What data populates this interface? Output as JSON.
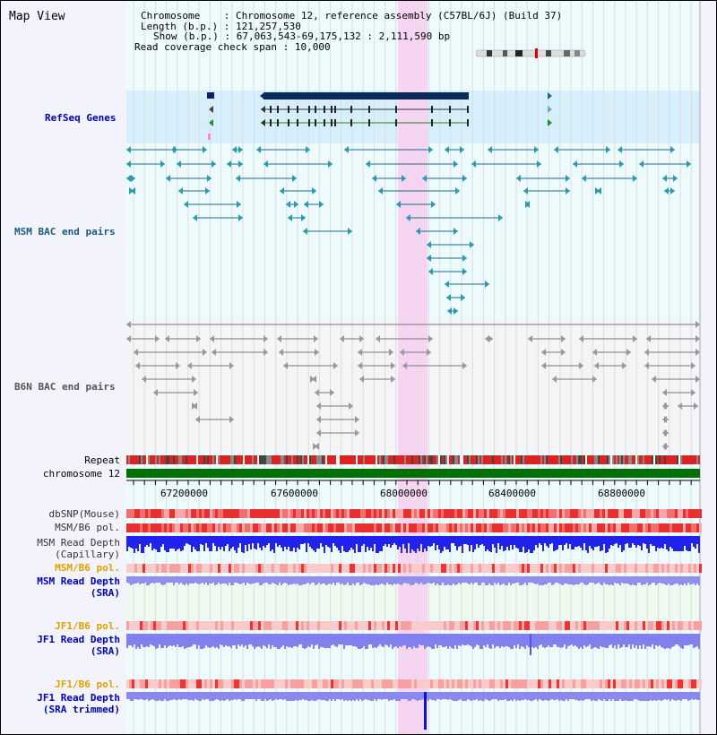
{
  "header": {
    "title": "Map View",
    "chromosome_label": "Chromosome",
    "chromosome_value": "Chromosome 12, reference assembly (C57BL/6J) (Build 37)",
    "length_label": "Length (b.p.)",
    "length_value": "121,257,530",
    "show_label": "Show (b.p.)",
    "show_value": "67,063,543-69,175,132 : 2,111,590 bp",
    "span_label": "Read coverage check span",
    "span_value": "10,000"
  },
  "tracks": {
    "refseq": "RefSeq Genes",
    "msm_bac": "MSM BAC end pairs",
    "b6n_bac": "B6N BAC end pairs",
    "repeat": "Repeat",
    "chromosome": "chromosome 12",
    "dbsnp": "dbSNP(Mouse)",
    "msm_b6_pol_1": "MSM/B6 pol.",
    "msm_read_cap_1": "MSM Read Depth",
    "msm_read_cap_2": "(Capillary)",
    "msm_b6_pol_2": "MSM/B6 pol.",
    "msm_read_sra_1": "MSM Read Depth",
    "msm_read_sra_2": "(SRA)",
    "jf1_b6_pol_1": "JF1/B6 pol.",
    "jf1_read_sra_1": "JF1 Read Depth",
    "jf1_read_sra_2": "(SRA)",
    "jf1_b6_pol_2": "JF1/B6 pol.",
    "jf1_read_trim_1": "JF1 Read Depth",
    "jf1_read_trim_2": "(SRA trimmed)"
  },
  "axis": {
    "ticks": [
      "67200000",
      "67600000",
      "68000000",
      "68400000",
      "68800000"
    ]
  },
  "colors": {
    "refseq_bg": "#d6effa",
    "msm_bac": "#1a6b82",
    "b6n_bac": "#666666",
    "chromosome_bar": "#007000",
    "highlight": "#f7d4f2",
    "depth_blue": "#2222ee",
    "depth_sra": "#8888ee",
    "pol_red": "#ee4444"
  }
}
